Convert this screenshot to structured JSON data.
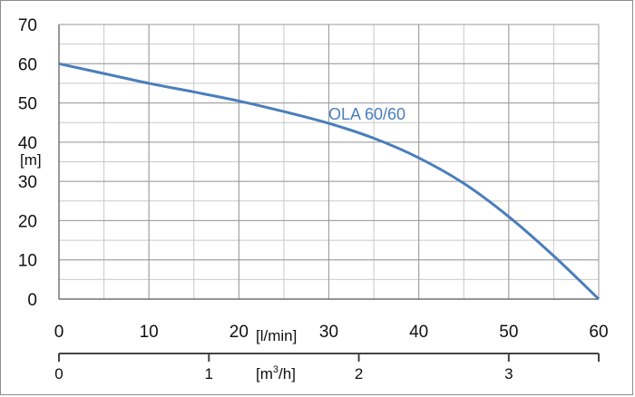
{
  "chart_data": {
    "type": "line",
    "series": [
      {
        "name": "OLA 60/60",
        "x": [
          0,
          5,
          10,
          15,
          20,
          25,
          30,
          35,
          40,
          45,
          50,
          55,
          60
        ],
        "y": [
          60,
          57.5,
          55,
          52.8,
          50.5,
          47.8,
          44.8,
          41,
          36,
          29.5,
          21,
          11,
          0
        ]
      }
    ],
    "color": "#4a7ebb",
    "ylabel": "[m]",
    "xlabel": "[l/min]",
    "xlabel2": "[m³/h]",
    "xlabel2_main": "[m",
    "xlabel2_sup": "3",
    "xlabel2_tail": "/h]",
    "xlim": [
      0,
      60
    ],
    "ylim": [
      0,
      70
    ],
    "yticks": [
      "0",
      "10",
      "20",
      "30",
      "40",
      "50",
      "60",
      "70"
    ],
    "xticks": [
      "0",
      "10",
      "20",
      "30",
      "40",
      "50",
      "60"
    ],
    "x2_ticks": [
      "0",
      "1",
      "2",
      "3"
    ],
    "x2_values": [
      0,
      1,
      2,
      3
    ],
    "x2_max": 3.6,
    "grid": true,
    "series_label": "OLA 60/60"
  }
}
